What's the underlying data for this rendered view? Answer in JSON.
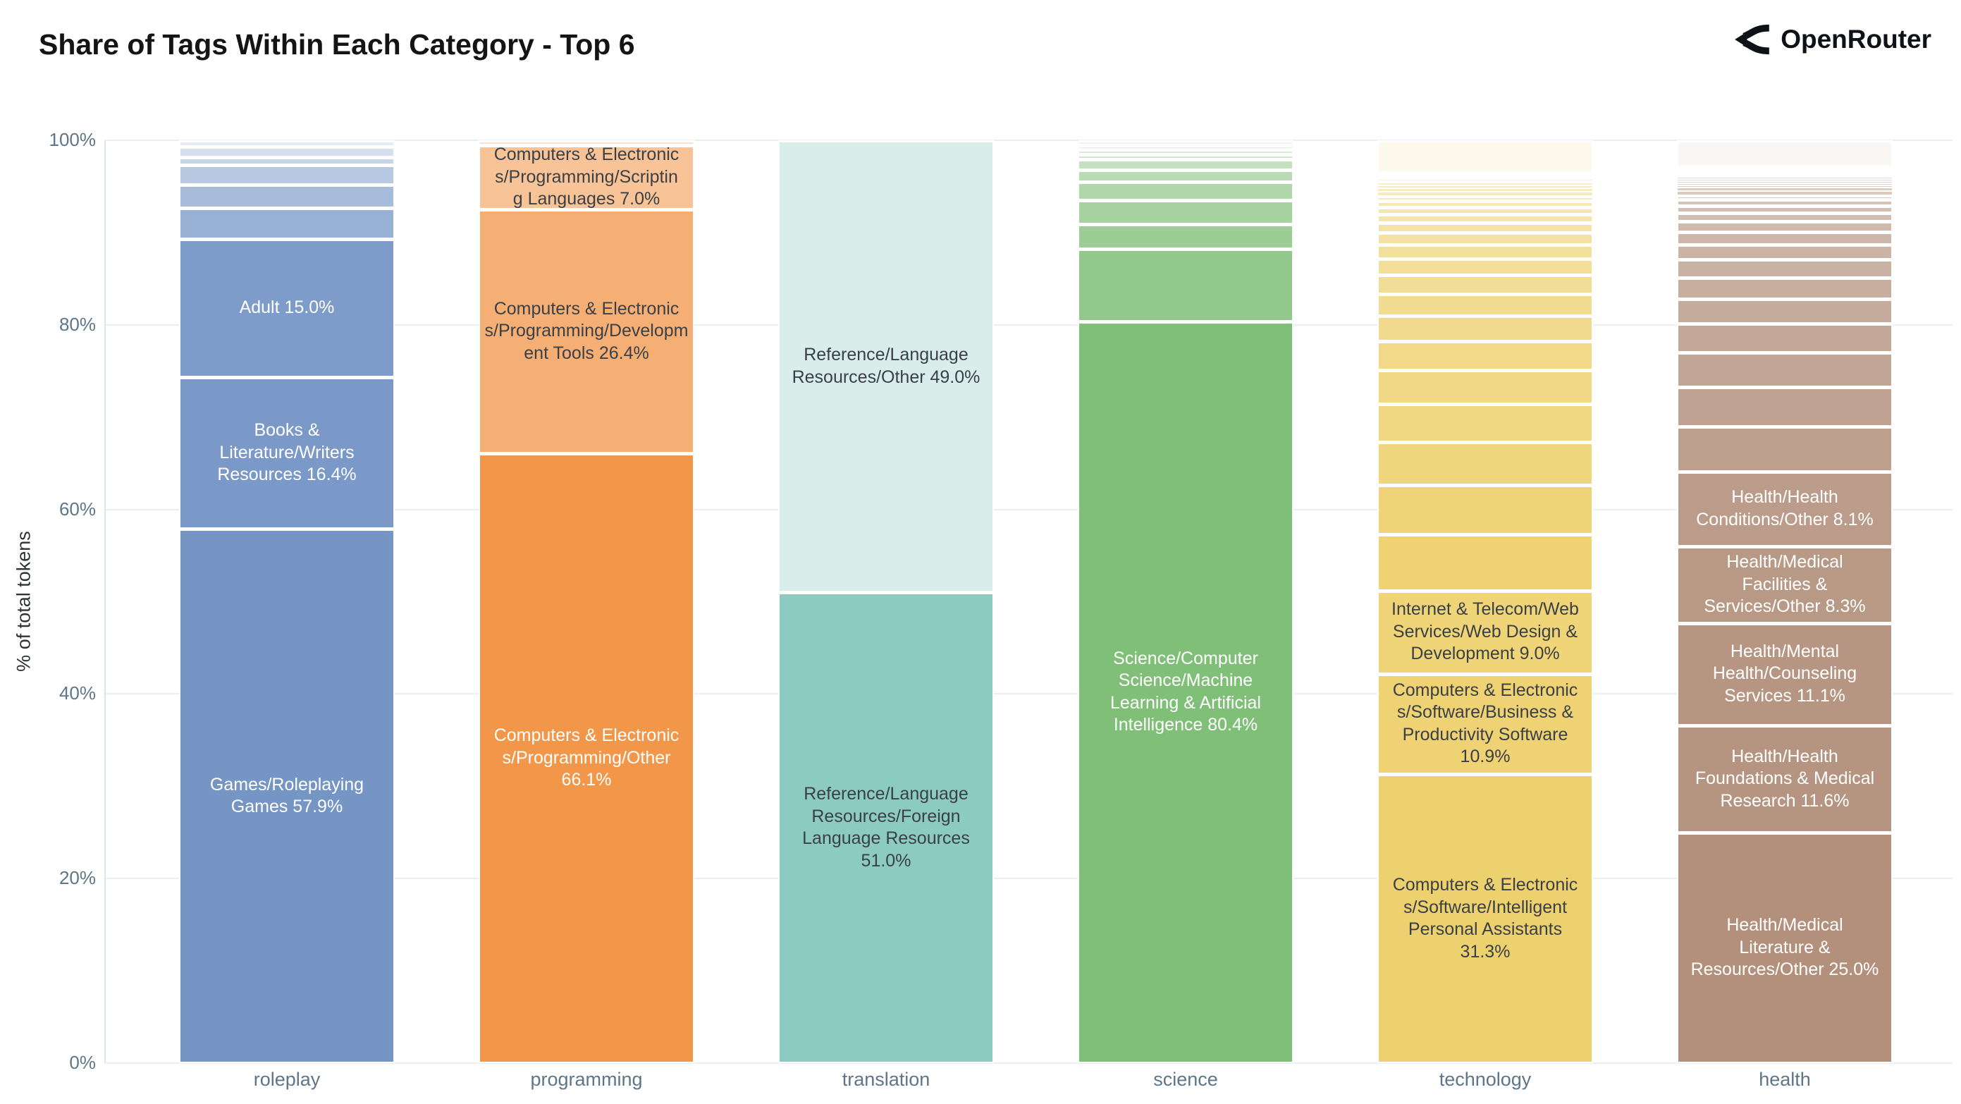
{
  "header": {
    "brand": "OpenRouter"
  },
  "chart_data": {
    "type": "bar",
    "stacking": "percent",
    "title": "Share of Tags Within Each Category - Top 6",
    "ylabel": "% of total tokens",
    "ylim": [
      0,
      100
    ],
    "grid": true,
    "legend": "none",
    "yticks": [
      {
        "label": "0%",
        "value": 0
      },
      {
        "label": "20%",
        "value": 20
      },
      {
        "label": "40%",
        "value": 40
      },
      {
        "label": "60%",
        "value": 60
      },
      {
        "label": "80%",
        "value": 80
      },
      {
        "label": "100%",
        "value": 100
      }
    ],
    "categories": [
      "roleplay",
      "programming",
      "translation",
      "science",
      "technology",
      "health"
    ],
    "bars": [
      {
        "category": "roleplay",
        "base_color": "#4772b2",
        "unlabeled_top_segments": {
          "values": [
            0.6,
            1.0,
            0.8,
            1.9,
            2.2,
            3.0
          ],
          "alpha_range": [
            0.14,
            0.56
          ]
        },
        "labeled_segments": [
          {
            "tag": "Adult",
            "value": 15.0,
            "alpha": 0.7,
            "text_color": "#ffffff",
            "label_lines": [
              "Adult 15.0%"
            ]
          },
          {
            "tag": "Books & Literature/Writers Resources",
            "value": 16.4,
            "alpha": 0.72,
            "text_color": "#ffffff",
            "label_lines": [
              "Books &",
              "Literature/Writers",
              "Resources 16.4%"
            ]
          },
          {
            "tag": "Games/Roleplaying Games",
            "value": 57.9,
            "alpha": 0.75,
            "text_color": "#ffffff",
            "label_lines": [
              "Games/Roleplaying",
              "Games 57.9%"
            ]
          }
        ]
      },
      {
        "category": "programming",
        "base_color": "#f0882f",
        "unlabeled_top_segments": {
          "values": [
            0.5
          ],
          "alpha_range": [
            0.25,
            0.25
          ]
        },
        "labeled_segments": [
          {
            "tag": "Computers & Electronics/Programming/Scripting Languages",
            "value": 7.0,
            "alpha": 0.5,
            "text_color": "#3b4046",
            "label_lines": [
              "Computers & Electronic",
              "s/Programming/Scriptin",
              "g Languages 7.0%"
            ]
          },
          {
            "tag": "Computers & Electronics/Programming/Development Tools",
            "value": 26.4,
            "alpha": 0.67,
            "text_color": "#3b4046",
            "label_lines": [
              "Computers & Electronic",
              "s/Programming/Developm",
              "ent Tools 26.4%"
            ]
          },
          {
            "tag": "Computers & Electronics/Programming/Other",
            "value": 66.1,
            "alpha": 0.87,
            "text_color": "#ffffff",
            "label_lines": [
              "Computers & Electronic",
              "s/Programming/Other",
              "66.1%"
            ]
          }
        ]
      },
      {
        "category": "translation",
        "base_color": "#3fa89a",
        "unlabeled_top_segments": {
          "values": [],
          "alpha_range": [
            0.2,
            0.2
          ]
        },
        "labeled_segments": [
          {
            "tag": "Reference/Language Resources/Other",
            "value": 49.0,
            "alpha": 0.2,
            "text_color": "#3b4046",
            "label_lines": [
              "Reference/Language",
              "Resources/Other 49.0%"
            ]
          },
          {
            "tag": "Reference/Language Resources/Foreign Language Resources",
            "value": 51.0,
            "alpha": 0.6,
            "text_color": "#3b4046",
            "label_lines": [
              "Reference/Language",
              "Resources/Foreign",
              "Language Resources",
              "51.0%"
            ]
          }
        ]
      },
      {
        "category": "science",
        "base_color": "#3c9d2f",
        "unlabeled_top_segments": {
          "values": [
            0.5,
            0.5,
            0.5,
            0.6,
            1.1,
            1.3,
            2.0,
            2.6,
            2.7,
            7.8
          ],
          "alpha_range": [
            0.1,
            0.56
          ]
        },
        "labeled_segments": [
          {
            "tag": "Science/Computer Science/Machine Learning & Artificial Intelligence",
            "value": 80.4,
            "alpha": 0.65,
            "text_color": "#ffffff",
            "label_lines": [
              "Science/Computer",
              "Science/Machine",
              "Learning & Artificial",
              "Intelligence 80.4%"
            ]
          }
        ]
      },
      {
        "category": "technology",
        "base_color": "#e3b416",
        "unlabeled_top_segments": {
          "values": [
            3.2,
            0.12,
            0.12,
            0.12,
            0.15,
            0.15,
            0.18,
            0.2,
            0.25,
            0.3,
            0.35,
            0.4,
            0.5,
            0.6,
            0.7,
            0.85,
            1.0,
            1.2,
            1.4,
            1.6,
            1.9,
            2.2,
            2.5,
            2.9,
            3.3,
            3.8,
            4.3,
            4.9,
            5.6
          ],
          "alpha_range": [
            0.08,
            0.6
          ]
        },
        "labeled_segments": [
          {
            "tag": "Internet & Telecom/Web Services/Web Design & Development",
            "value": 9.0,
            "alpha": 0.58,
            "text_color": "#3b4046",
            "label_lines": [
              "Internet & Telecom/Web",
              "Services/Web Design &",
              "Development 9.0%"
            ]
          },
          {
            "tag": "Computers & Electronics/Software/Business & Productivity Software",
            "value": 10.9,
            "alpha": 0.6,
            "text_color": "#3b4046",
            "label_lines": [
              "Computers & Electronic",
              "s/Software/Business &",
              "Productivity Software",
              "10.9%"
            ]
          },
          {
            "tag": "Computers & Electronics/Software/Intelligent Personal Assistants",
            "value": 31.3,
            "alpha": 0.62,
            "text_color": "#3b4046",
            "label_lines": [
              "Computers & Electronic",
              "s/Software/Intelligent",
              "Personal Assistants",
              "31.3%"
            ]
          }
        ]
      },
      {
        "category": "health",
        "base_color": "#946548",
        "unlabeled_top_segments": {
          "values": [
            2.0,
            0.1,
            0.1,
            0.1,
            0.1,
            0.1,
            0.1,
            0.1,
            0.1,
            0.15,
            0.15,
            0.15,
            0.15,
            0.2,
            0.25,
            0.3,
            0.35,
            0.45,
            0.55,
            0.65,
            0.8,
            0.95,
            1.15,
            1.35,
            1.6,
            1.9,
            2.2,
            2.6,
            3.0,
            3.4
          ],
          "alpha_range": [
            0.06,
            0.62
          ]
        },
        "labeled_segments": [
          {
            "tag": "Health/Health Conditions/Other",
            "value": 8.1,
            "alpha": 0.64,
            "text_color": "#ffffff",
            "label_lines": [
              "Health/Health",
              "Conditions/Other 8.1%"
            ]
          },
          {
            "tag": "Health/Medical Facilities & Services/Other",
            "value": 8.3,
            "alpha": 0.66,
            "text_color": "#ffffff",
            "label_lines": [
              "Health/Medical",
              "Facilities &",
              "Services/Other 8.3%"
            ]
          },
          {
            "tag": "Health/Mental Health/Counseling Services",
            "value": 11.1,
            "alpha": 0.68,
            "text_color": "#ffffff",
            "label_lines": [
              "Health/Mental",
              "Health/Counseling",
              "Services 11.1%"
            ]
          },
          {
            "tag": "Health/Health Foundations & Medical Research",
            "value": 11.6,
            "alpha": 0.69,
            "text_color": "#ffffff",
            "label_lines": [
              "Health/Health",
              "Foundations & Medical",
              "Research 11.6%"
            ]
          },
          {
            "tag": "Health/Medical Literature & Resources/Other",
            "value": 25.0,
            "alpha": 0.72,
            "text_color": "#ffffff",
            "label_lines": [
              "Health/Medical",
              "Literature &",
              "Resources/Other 25.0%"
            ]
          }
        ]
      }
    ]
  }
}
